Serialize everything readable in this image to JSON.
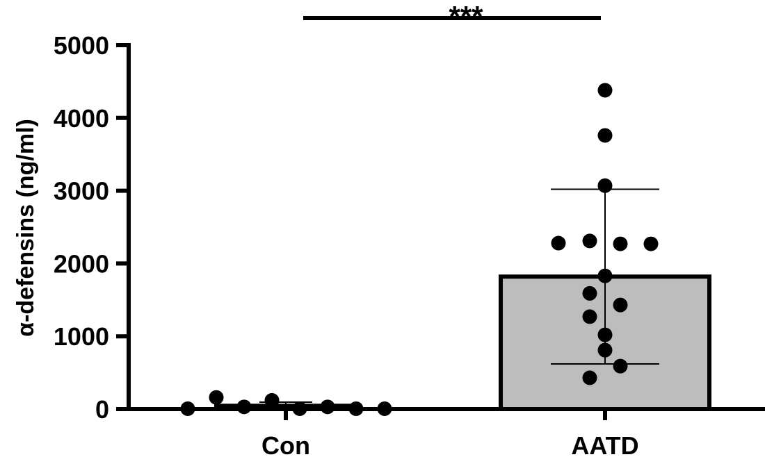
{
  "chart_data": {
    "type": "bar",
    "title": "",
    "xlabel": "",
    "ylabel": "α-defensins (ng/ml)",
    "ylim": [
      0,
      5000
    ],
    "yticks": [
      0,
      1000,
      2000,
      3000,
      4000,
      5000
    ],
    "categories": [
      "Con",
      "AATD"
    ],
    "values": [
      45,
      1820
    ],
    "errors": [
      50,
      1200
    ],
    "points": [
      [
        5,
        160,
        30,
        120,
        5,
        30,
        5,
        5
      ],
      [
        4380,
        3760,
        3070,
        2280,
        2310,
        2270,
        2270,
        1830,
        1590,
        1430,
        1270,
        1020,
        810,
        590,
        430
      ]
    ],
    "bar_colors": [
      "#bdbdbd",
      "#bdbdbd"
    ],
    "point_color": "#000000",
    "grid": false,
    "significance": {
      "label": "***",
      "from": "Con",
      "to": "AATD"
    }
  }
}
